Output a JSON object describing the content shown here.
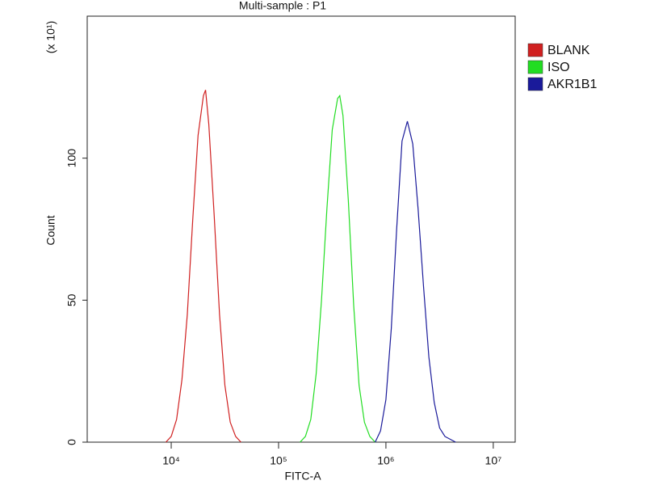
{
  "chart_data": {
    "type": "line",
    "title": "Multi-sample : P1",
    "x_label": "FITC-A",
    "y_label": "Count",
    "y_multiplier": "(x 10¹)",
    "xscale": "log",
    "xlim": [
      1650,
      16000000
    ],
    "xticks": [
      {
        "value": 10000,
        "label": "10⁴"
      },
      {
        "value": 100000,
        "label": "10⁵"
      },
      {
        "value": 1000000,
        "label": "10⁶"
      },
      {
        "value": 10000000,
        "label": "10⁷"
      }
    ],
    "ylim": [
      0,
      150
    ],
    "yticks": [
      0,
      50,
      100
    ],
    "grid": false,
    "legend_loc": "right",
    "series": [
      {
        "name": "BLANK",
        "color": "#d02020",
        "x": [
          8913,
          10000,
          11220,
          12589,
          14125,
          15849,
          17783,
          19953,
          20893,
          22387,
          25119,
          28184,
          31623,
          35481,
          39811,
          44668
        ],
        "values": [
          0,
          2,
          8,
          22,
          45,
          78,
          108,
          122,
          124,
          112,
          80,
          45,
          20,
          7,
          2,
          0
        ]
      },
      {
        "name": "ISO",
        "color": "#22dd22",
        "x": [
          158489,
          177828,
          199526,
          223872,
          251189,
          281838,
          316228,
          354813,
          371535,
          398107,
          446684,
          501187,
          562341,
          630957,
          707946,
          794328
        ],
        "values": [
          0,
          2,
          8,
          24,
          50,
          82,
          110,
          121,
          122,
          115,
          85,
          48,
          20,
          7,
          2,
          0
        ]
      },
      {
        "name": "AKR1B1",
        "color": "#1a1a9a",
        "x": [
          794328,
          891251,
          1000000,
          1122018,
          1258925,
          1412538,
          1584893,
          1778279,
          1995262,
          2238721,
          2511886,
          2818383,
          3162278,
          3548134,
          3981072,
          4466836
        ],
        "values": [
          0,
          4,
          15,
          40,
          75,
          106,
          113,
          105,
          82,
          55,
          30,
          14,
          5,
          2,
          1,
          0
        ]
      }
    ]
  }
}
